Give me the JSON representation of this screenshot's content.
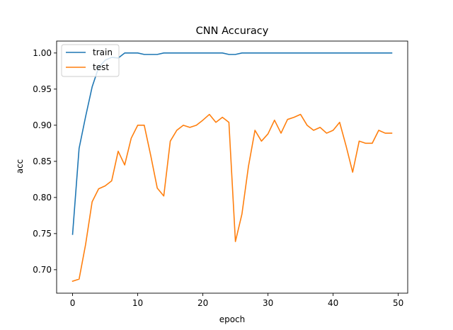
{
  "chart_data": {
    "type": "line",
    "title": "CNN Accuracy",
    "xlabel": "epoch",
    "ylabel": "acc",
    "xlim": [
      -2.45,
      51.45
    ],
    "ylim": [
      0.6675,
      1.0165
    ],
    "xticks": [
      0,
      10,
      20,
      30,
      40,
      50
    ],
    "yticks": [
      0.7,
      0.75,
      0.8,
      0.85,
      0.9,
      0.95,
      1.0
    ],
    "ytick_labels": [
      "0.70",
      "0.75",
      "0.80",
      "0.85",
      "0.90",
      "0.95",
      "1.00"
    ],
    "grid": false,
    "legend_position": "top-left",
    "x": [
      0,
      1,
      2,
      3,
      4,
      5,
      6,
      7,
      8,
      9,
      10,
      11,
      12,
      13,
      14,
      15,
      16,
      17,
      18,
      19,
      20,
      21,
      22,
      23,
      24,
      25,
      26,
      27,
      28,
      29,
      30,
      31,
      32,
      33,
      34,
      35,
      36,
      37,
      38,
      39,
      40,
      41,
      42,
      43,
      44,
      45,
      46,
      47,
      48,
      49
    ],
    "series": [
      {
        "name": "train",
        "color": "#1f77b4",
        "values": [
          0.749,
          0.868,
          0.912,
          0.953,
          0.98,
          0.99,
          0.994,
          0.993,
          1.0,
          1.0,
          1.0,
          0.998,
          0.998,
          0.998,
          1.0,
          1.0,
          1.0,
          1.0,
          1.0,
          1.0,
          1.0,
          1.0,
          1.0,
          1.0,
          0.998,
          0.998,
          1.0,
          1.0,
          1.0,
          1.0,
          1.0,
          1.0,
          1.0,
          1.0,
          1.0,
          1.0,
          1.0,
          1.0,
          1.0,
          1.0,
          1.0,
          1.0,
          1.0,
          1.0,
          1.0,
          1.0,
          1.0,
          1.0,
          1.0,
          1.0
        ]
      },
      {
        "name": "test",
        "color": "#ff7f0e",
        "values": [
          0.684,
          0.687,
          0.735,
          0.794,
          0.812,
          0.816,
          0.823,
          0.864,
          0.845,
          0.882,
          0.9,
          0.9,
          0.858,
          0.813,
          0.802,
          0.878,
          0.893,
          0.9,
          0.897,
          0.9,
          0.907,
          0.915,
          0.904,
          0.911,
          0.904,
          0.739,
          0.777,
          0.843,
          0.893,
          0.878,
          0.888,
          0.907,
          0.889,
          0.908,
          0.911,
          0.915,
          0.9,
          0.893,
          0.897,
          0.889,
          0.893,
          0.904,
          0.871,
          0.835,
          0.878,
          0.875,
          0.875,
          0.893,
          0.889,
          0.889
        ]
      }
    ]
  }
}
